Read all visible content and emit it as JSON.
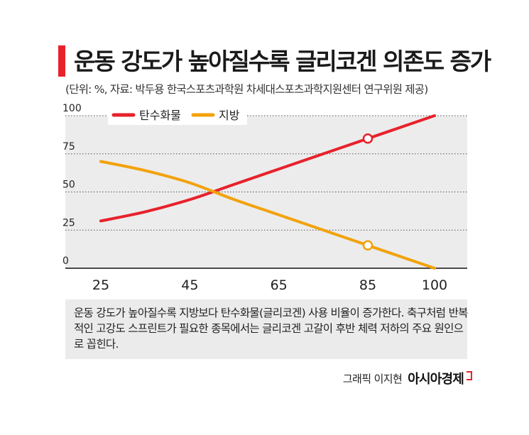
{
  "header": {
    "title": "운동 강도가 높아질수록 글리코겐 의존도 증가",
    "subtitle": "(단위: %, 자료: 박두용 한국스포츠과학원 차세대스포츠과학지원센터 연구위원 제공)"
  },
  "chart_data": {
    "type": "line",
    "x": [
      25,
      35,
      45,
      55,
      65,
      75,
      85,
      95,
      100
    ],
    "xticks": [
      "25",
      "45",
      "65",
      "85",
      "100"
    ],
    "xtick_values": [
      25,
      45,
      65,
      85,
      100
    ],
    "yticks": [
      "0",
      "25",
      "50",
      "75",
      "100"
    ],
    "ytick_values": [
      0,
      25,
      50,
      75,
      100
    ],
    "xlim": [
      25,
      100
    ],
    "ylim": [
      0,
      100
    ],
    "grid": true,
    "legend_position": "top-left",
    "series": [
      {
        "name": "탄수화물",
        "color": "#e8212b",
        "x": [
          25,
          35,
          45,
          55,
          65,
          75,
          85,
          95,
          100
        ],
        "values": [
          31,
          37,
          45,
          55,
          65,
          75,
          85,
          95,
          100
        ],
        "marker_x": 85
      },
      {
        "name": "지방",
        "color": "#f2a20c",
        "x": [
          25,
          35,
          45,
          55,
          65,
          75,
          85,
          95,
          100
        ],
        "values": [
          70,
          64,
          56,
          45,
          35,
          25,
          15,
          5,
          0
        ],
        "marker_x": 85
      }
    ]
  },
  "note": "운동 강도가 높아질수록 지방보다 탄수화물(글리코겐) 사용 비율이 증가한다. 축구처럼 반복적인 고강도 스프린트가 필요한 종목에서는 글리코겐 고갈이 후반 체력 저하의 주요 원인으로 꼽힌다.",
  "credit": {
    "name": "그래픽 이지현",
    "brand": "아시아경제"
  }
}
